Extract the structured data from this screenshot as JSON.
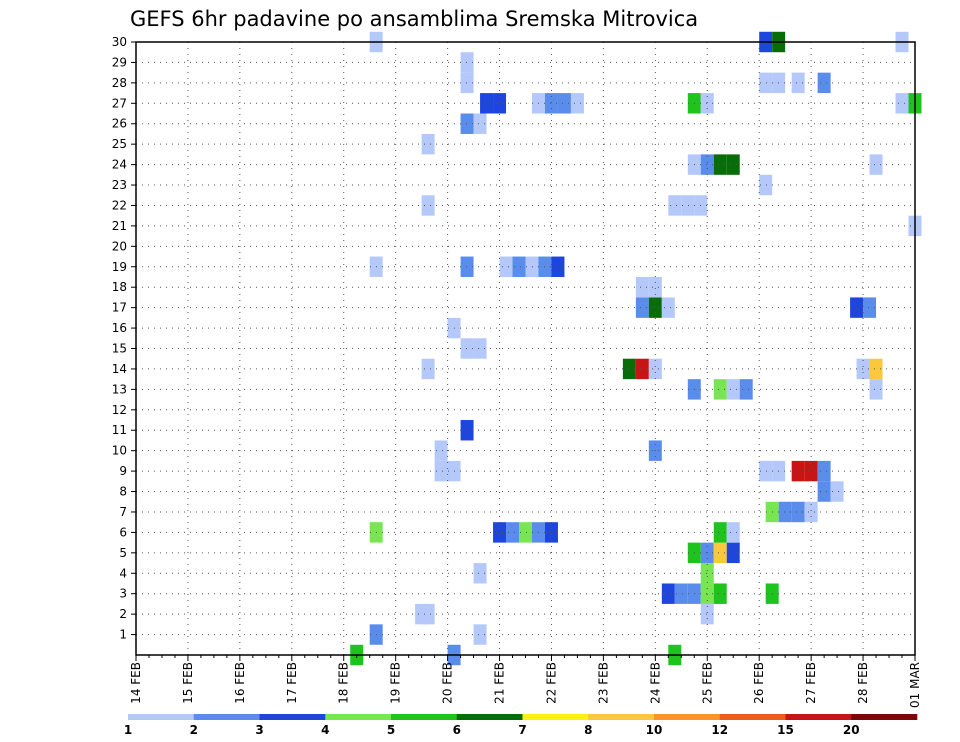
{
  "chart_data": {
    "type": "heatmap",
    "title": "GEFS 6hr padavine po ansamblima Sremska Mitrovica",
    "xlabel": "",
    "ylabel": "",
    "x_start": "2026-02-14",
    "x_step_hours": 6,
    "x_range_steps": [
      0,
      60
    ],
    "x_tick_labels": [
      "14 FEB",
      "15 FEB",
      "16 FEB",
      "17 FEB",
      "18 FEB",
      "19 FEB",
      "20 FEB",
      "21 FEB",
      "22 FEB",
      "23 FEB",
      "24 FEB",
      "25 FEB",
      "26 FEB",
      "27 FEB",
      "28 FEB",
      "01 MAR"
    ],
    "y_range": [
      0,
      30
    ],
    "y_tick_labels": [
      "1",
      "2",
      "3",
      "4",
      "5",
      "6",
      "7",
      "8",
      "9",
      "10",
      "11",
      "12",
      "13",
      "14",
      "15",
      "16",
      "17",
      "18",
      "19",
      "20",
      "21",
      "22",
      "23",
      "24",
      "25",
      "26",
      "27",
      "28",
      "29",
      "30"
    ],
    "grid": true,
    "colorbar": {
      "levels": [
        "1",
        "2",
        "3",
        "4",
        "5",
        "6",
        "7",
        "8",
        "10",
        "12",
        "15",
        "20"
      ],
      "colors": [
        "#b4c8fa",
        "#5a8ceb",
        "#1e46dc",
        "#78e650",
        "#1ec31e",
        "#086c08",
        "#fff014",
        "#fac83c",
        "#fa9628",
        "#f05a1e",
        "#c81414",
        "#7a0808"
      ]
    },
    "points": [
      {
        "x": 17.0,
        "m": 0,
        "c": 5
      },
      {
        "x": 24.5,
        "m": 0,
        "c": 2
      },
      {
        "x": 41.5,
        "m": 0,
        "c": 5
      },
      {
        "x": 18.5,
        "m": 1,
        "c": 2
      },
      {
        "x": 26.5,
        "m": 1,
        "c": 1
      },
      {
        "x": 22.0,
        "m": 2,
        "c": 1
      },
      {
        "x": 22.5,
        "m": 2,
        "c": 1
      },
      {
        "x": 44.0,
        "m": 2,
        "c": 1
      },
      {
        "x": 41.0,
        "m": 3,
        "c": 3
      },
      {
        "x": 42.0,
        "m": 3,
        "c": 2
      },
      {
        "x": 43.0,
        "m": 3,
        "c": 2
      },
      {
        "x": 44.0,
        "m": 3,
        "c": 4
      },
      {
        "x": 45.0,
        "m": 3,
        "c": 5
      },
      {
        "x": 49.0,
        "m": 3,
        "c": 5
      },
      {
        "x": 26.5,
        "m": 4,
        "c": 1
      },
      {
        "x": 44.0,
        "m": 4,
        "c": 4
      },
      {
        "x": 43.0,
        "m": 5,
        "c": 5
      },
      {
        "x": 44.0,
        "m": 5,
        "c": 2
      },
      {
        "x": 45.0,
        "m": 5,
        "c": 8
      },
      {
        "x": 46.0,
        "m": 5,
        "c": 3
      },
      {
        "x": 18.5,
        "m": 6,
        "c": 4
      },
      {
        "x": 28.0,
        "m": 6,
        "c": 3
      },
      {
        "x": 29.0,
        "m": 6,
        "c": 2
      },
      {
        "x": 30.0,
        "m": 6,
        "c": 4
      },
      {
        "x": 31.0,
        "m": 6,
        "c": 2
      },
      {
        "x": 32.0,
        "m": 6,
        "c": 3
      },
      {
        "x": 45.0,
        "m": 6,
        "c": 5
      },
      {
        "x": 46.0,
        "m": 6,
        "c": 1
      },
      {
        "x": 49.0,
        "m": 7,
        "c": 4
      },
      {
        "x": 50.0,
        "m": 7,
        "c": 2
      },
      {
        "x": 51.0,
        "m": 7,
        "c": 2
      },
      {
        "x": 52.0,
        "m": 7,
        "c": 1
      },
      {
        "x": 53.0,
        "m": 8,
        "c": 2
      },
      {
        "x": 54.0,
        "m": 8,
        "c": 1
      },
      {
        "x": 23.5,
        "m": 9,
        "c": 1
      },
      {
        "x": 24.5,
        "m": 9,
        "c": 1
      },
      {
        "x": 48.5,
        "m": 9,
        "c": 1
      },
      {
        "x": 49.5,
        "m": 9,
        "c": 1
      },
      {
        "x": 51.0,
        "m": 9,
        "c": 11
      },
      {
        "x": 52.0,
        "m": 9,
        "c": 11
      },
      {
        "x": 53.0,
        "m": 9,
        "c": 2
      },
      {
        "x": 23.5,
        "m": 10,
        "c": 1
      },
      {
        "x": 40.0,
        "m": 10,
        "c": 2
      },
      {
        "x": 25.5,
        "m": 11,
        "c": 3
      },
      {
        "x": 43.0,
        "m": 13,
        "c": 2
      },
      {
        "x": 45.0,
        "m": 13,
        "c": 4
      },
      {
        "x": 46.0,
        "m": 13,
        "c": 1
      },
      {
        "x": 47.0,
        "m": 13,
        "c": 2
      },
      {
        "x": 57.0,
        "m": 13,
        "c": 1
      },
      {
        "x": 22.5,
        "m": 14,
        "c": 1
      },
      {
        "x": 38.0,
        "m": 14,
        "c": 6
      },
      {
        "x": 39.0,
        "m": 14,
        "c": 11
      },
      {
        "x": 40.0,
        "m": 14,
        "c": 1
      },
      {
        "x": 56.0,
        "m": 14,
        "c": 1
      },
      {
        "x": 57.0,
        "m": 14,
        "c": 8
      },
      {
        "x": 25.5,
        "m": 15,
        "c": 1
      },
      {
        "x": 26.5,
        "m": 15,
        "c": 1
      },
      {
        "x": 24.5,
        "m": 16,
        "c": 1
      },
      {
        "x": 39.0,
        "m": 17,
        "c": 2
      },
      {
        "x": 40.0,
        "m": 17,
        "c": 6
      },
      {
        "x": 41.0,
        "m": 17,
        "c": 1
      },
      {
        "x": 55.5,
        "m": 17,
        "c": 3
      },
      {
        "x": 56.5,
        "m": 17,
        "c": 2
      },
      {
        "x": 39.0,
        "m": 18,
        "c": 1
      },
      {
        "x": 40.0,
        "m": 18,
        "c": 1
      },
      {
        "x": 18.5,
        "m": 19,
        "c": 1
      },
      {
        "x": 25.5,
        "m": 19,
        "c": 2
      },
      {
        "x": 28.5,
        "m": 19,
        "c": 1
      },
      {
        "x": 29.5,
        "m": 19,
        "c": 2
      },
      {
        "x": 30.5,
        "m": 19,
        "c": 1
      },
      {
        "x": 31.5,
        "m": 19,
        "c": 2
      },
      {
        "x": 32.5,
        "m": 19,
        "c": 3
      },
      {
        "x": 60.0,
        "m": 21,
        "c": 1
      },
      {
        "x": 22.5,
        "m": 22,
        "c": 1
      },
      {
        "x": 41.5,
        "m": 22,
        "c": 1
      },
      {
        "x": 42.5,
        "m": 22,
        "c": 1
      },
      {
        "x": 43.5,
        "m": 22,
        "c": 1
      },
      {
        "x": 48.5,
        "m": 23,
        "c": 1
      },
      {
        "x": 43.0,
        "m": 24,
        "c": 1
      },
      {
        "x": 44.0,
        "m": 24,
        "c": 2
      },
      {
        "x": 45.0,
        "m": 24,
        "c": 6
      },
      {
        "x": 46.0,
        "m": 24,
        "c": 6
      },
      {
        "x": 57.0,
        "m": 24,
        "c": 1
      },
      {
        "x": 22.5,
        "m": 25,
        "c": 1
      },
      {
        "x": 25.5,
        "m": 26,
        "c": 2
      },
      {
        "x": 26.5,
        "m": 26,
        "c": 1
      },
      {
        "x": 27.0,
        "m": 27,
        "c": 3
      },
      {
        "x": 28.0,
        "m": 27,
        "c": 3
      },
      {
        "x": 31.0,
        "m": 27,
        "c": 1
      },
      {
        "x": 32.0,
        "m": 27,
        "c": 2
      },
      {
        "x": 33.0,
        "m": 27,
        "c": 2
      },
      {
        "x": 34.0,
        "m": 27,
        "c": 1
      },
      {
        "x": 43.0,
        "m": 27,
        "c": 5
      },
      {
        "x": 44.0,
        "m": 27,
        "c": 1
      },
      {
        "x": 59.0,
        "m": 27,
        "c": 1
      },
      {
        "x": 60.0,
        "m": 27,
        "c": 5
      },
      {
        "x": 25.5,
        "m": 28,
        "c": 1
      },
      {
        "x": 48.5,
        "m": 28,
        "c": 1
      },
      {
        "x": 49.5,
        "m": 28,
        "c": 1
      },
      {
        "x": 51.0,
        "m": 28,
        "c": 1
      },
      {
        "x": 53.0,
        "m": 28,
        "c": 2
      },
      {
        "x": 25.5,
        "m": 29,
        "c": 1
      },
      {
        "x": 18.5,
        "m": 30,
        "c": 1
      },
      {
        "x": 48.5,
        "m": 30,
        "c": 3
      },
      {
        "x": 49.5,
        "m": 30,
        "c": 6
      },
      {
        "x": 59.0,
        "m": 30,
        "c": 1
      }
    ]
  }
}
